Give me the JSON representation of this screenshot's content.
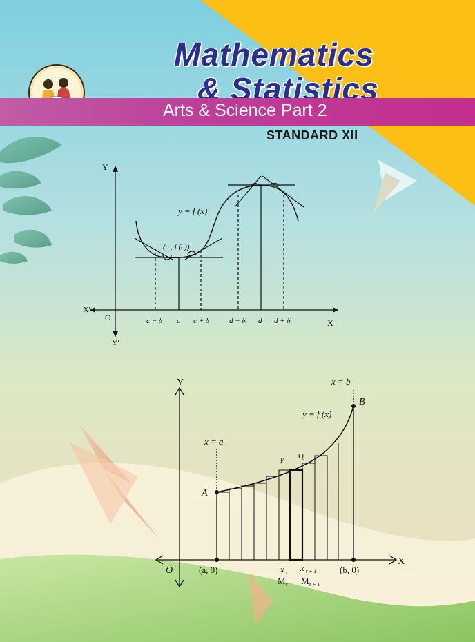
{
  "cover": {
    "title_line1": "Mathematics",
    "title_line2": "& Statistics",
    "subtitle": "Arts & Science Part 2",
    "standard": "STANDARD XII"
  },
  "figure1": {
    "y_axis": "Y",
    "y_axis_neg": "Y'",
    "x_axis": "X",
    "x_axis_neg": "X'",
    "origin": "O",
    "curve_label": "y = f (x)",
    "point_label": "(c , f (c))",
    "ticks": [
      "c − δ",
      "c",
      "c + δ",
      "d − δ",
      "d",
      "d + δ"
    ]
  },
  "figure2": {
    "y_axis": "Y",
    "x_axis": "X",
    "origin": "O",
    "curve_label": "y = f (x)",
    "line_a": "x = a",
    "line_b": "x = b",
    "point_A": "A",
    "point_B": "B",
    "point_P": "P",
    "point_Q": "Q",
    "label_a0": "(a, 0)",
    "label_b0": "(b, 0)",
    "xr": "x",
    "xr_sub": "r",
    "xr1": "x",
    "xr1_sub": "r + 1",
    "Mr": "M",
    "Mr_sub": "r",
    "Mr1": "M",
    "Mr1_sub": "r + 1"
  },
  "colors": {
    "title": "#2b2e8e",
    "band": "#c0459b",
    "yellow": "#fbbf16",
    "sky": "#8fd3e0"
  }
}
